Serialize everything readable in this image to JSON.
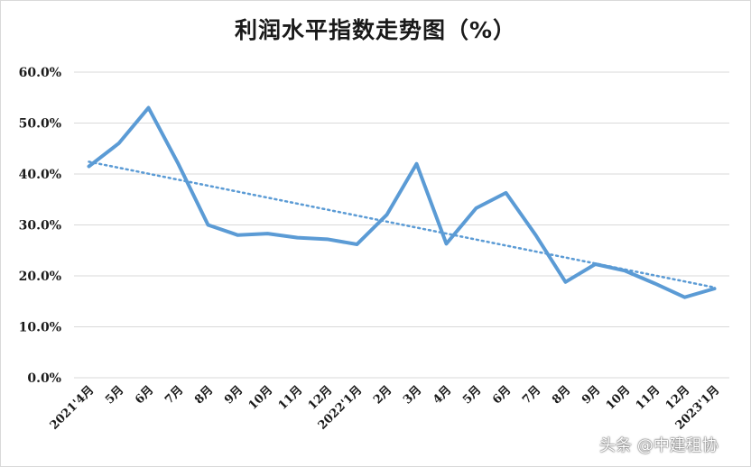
{
  "chart_data": {
    "type": "line",
    "title": "利润水平指数走势图（%）",
    "categories": [
      "2021'4月",
      "5月",
      "6月",
      "7月",
      "8月",
      "9月",
      "10月",
      "11月",
      "12月",
      "2022'1月",
      "2月",
      "3月",
      "4月",
      "5月",
      "6月",
      "7月",
      "8月",
      "9月",
      "10月",
      "11月",
      "12月",
      "2023'1月"
    ],
    "series": [
      {
        "values": [
          41.5,
          46.0,
          53.0,
          42.0,
          30.0,
          28.0,
          28.3,
          27.5,
          27.2,
          26.2,
          32.0,
          42.0,
          26.3,
          33.3,
          36.3,
          28.0,
          18.8,
          22.3,
          21.0,
          18.5,
          15.8,
          17.5
        ],
        "color": "#5b9bd5"
      }
    ],
    "trendline": {
      "type": "linear",
      "style": "dotted",
      "color": "#5b9bd5"
    },
    "yticks": [
      "0.0%",
      "10.0%",
      "20.0%",
      "30.0%",
      "40.0%",
      "50.0%",
      "60.0%"
    ],
    "ylim": [
      0,
      60
    ],
    "grid": true,
    "legend": "none"
  },
  "watermark": "头条 @中建租协"
}
